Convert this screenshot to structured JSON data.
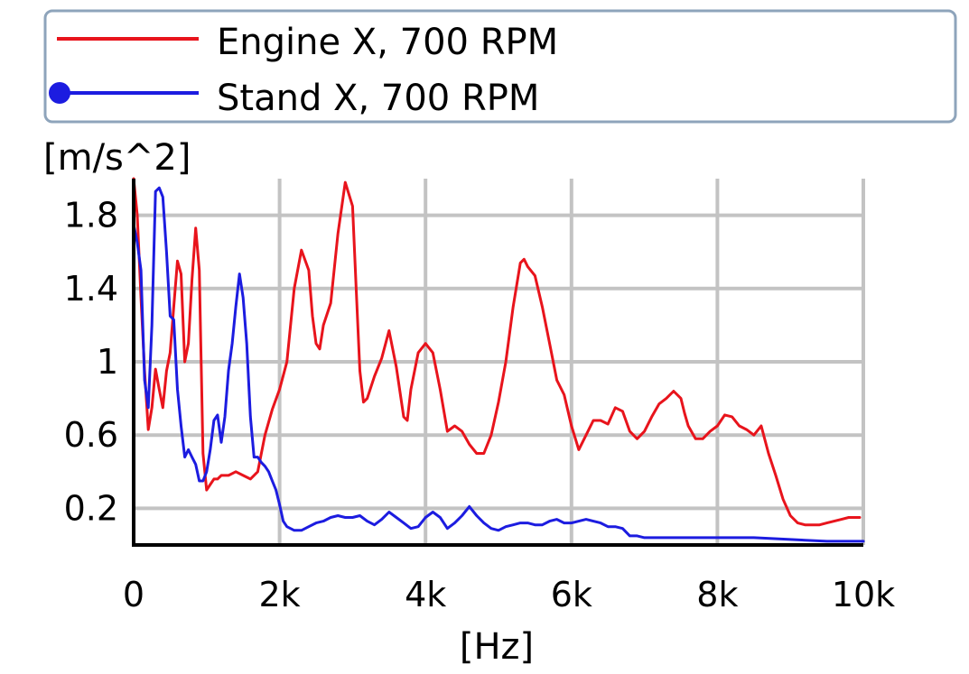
{
  "chart_data": {
    "type": "line",
    "title": "",
    "xlabel": "[Hz]",
    "ylabel": "[m/s^2]",
    "xlim": [
      0,
      10000
    ],
    "ylim": [
      0,
      2.0
    ],
    "grid": true,
    "legend_position": "top",
    "x_ticks": [
      {
        "value": 0,
        "label": "0"
      },
      {
        "value": 2000,
        "label": "2k"
      },
      {
        "value": 4000,
        "label": "4k"
      },
      {
        "value": 6000,
        "label": "6k"
      },
      {
        "value": 8000,
        "label": "8k"
      },
      {
        "value": 10000,
        "label": "10k"
      }
    ],
    "y_ticks": [
      {
        "value": 0.2,
        "label": "0.2"
      },
      {
        "value": 0.6,
        "label": "0.6"
      },
      {
        "value": 1.0,
        "label": "1"
      },
      {
        "value": 1.4,
        "label": "1.4"
      },
      {
        "value": 1.8,
        "label": "1.8"
      }
    ],
    "series": [
      {
        "name": "Engine X, 700 RPM",
        "color": "#e8141c",
        "marker": "none",
        "x": [
          0,
          50,
          100,
          150,
          200,
          250,
          300,
          350,
          400,
          450,
          500,
          550,
          600,
          650,
          700,
          750,
          800,
          850,
          900,
          950,
          1000,
          1050,
          1100,
          1150,
          1200,
          1300,
          1400,
          1500,
          1600,
          1700,
          1800,
          1900,
          2000,
          2100,
          2200,
          2300,
          2400,
          2450,
          2500,
          2550,
          2600,
          2700,
          2800,
          2900,
          3000,
          3050,
          3100,
          3150,
          3200,
          3300,
          3400,
          3500,
          3600,
          3700,
          3750,
          3800,
          3900,
          4000,
          4100,
          4200,
          4300,
          4400,
          4500,
          4600,
          4700,
          4800,
          4900,
          5000,
          5100,
          5200,
          5300,
          5350,
          5400,
          5500,
          5600,
          5700,
          5800,
          5900,
          6000,
          6100,
          6200,
          6300,
          6400,
          6500,
          6600,
          6700,
          6800,
          6900,
          7000,
          7100,
          7200,
          7300,
          7400,
          7500,
          7550,
          7600,
          7700,
          7800,
          7900,
          8000,
          8100,
          8200,
          8300,
          8400,
          8500,
          8600,
          8700,
          8800,
          8900,
          9000,
          9100,
          9200,
          9300,
          9400,
          9500,
          9600,
          9700,
          9800,
          9900,
          9950
        ],
        "y": [
          2.0,
          1.8,
          1.35,
          0.95,
          0.63,
          0.75,
          0.96,
          0.85,
          0.75,
          0.95,
          1.05,
          1.3,
          1.55,
          1.48,
          1.0,
          1.1,
          1.45,
          1.73,
          1.5,
          0.5,
          0.3,
          0.33,
          0.36,
          0.36,
          0.38,
          0.38,
          0.4,
          0.38,
          0.36,
          0.4,
          0.6,
          0.74,
          0.85,
          1.0,
          1.4,
          1.61,
          1.5,
          1.25,
          1.1,
          1.07,
          1.2,
          1.32,
          1.7,
          1.98,
          1.85,
          1.4,
          0.95,
          0.78,
          0.8,
          0.92,
          1.02,
          1.17,
          0.97,
          0.7,
          0.68,
          0.85,
          1.05,
          1.1,
          1.05,
          0.85,
          0.62,
          0.65,
          0.62,
          0.55,
          0.5,
          0.5,
          0.6,
          0.78,
          1.0,
          1.3,
          1.54,
          1.56,
          1.52,
          1.47,
          1.3,
          1.1,
          0.9,
          0.82,
          0.65,
          0.52,
          0.6,
          0.68,
          0.68,
          0.66,
          0.75,
          0.73,
          0.62,
          0.58,
          0.62,
          0.7,
          0.77,
          0.8,
          0.84,
          0.8,
          0.72,
          0.65,
          0.58,
          0.58,
          0.62,
          0.65,
          0.71,
          0.7,
          0.65,
          0.63,
          0.6,
          0.65,
          0.5,
          0.38,
          0.25,
          0.16,
          0.12,
          0.11,
          0.11,
          0.11,
          0.12,
          0.13,
          0.14,
          0.15,
          0.15,
          0.15
        ]
      },
      {
        "name": "Stand X, 700 RPM",
        "color": "#1c1ce0",
        "marker": "circle",
        "x": [
          0,
          50,
          100,
          150,
          200,
          250,
          300,
          350,
          400,
          450,
          500,
          550,
          600,
          650,
          700,
          750,
          800,
          850,
          900,
          950,
          1000,
          1050,
          1100,
          1150,
          1200,
          1250,
          1300,
          1350,
          1400,
          1450,
          1500,
          1550,
          1600,
          1650,
          1700,
          1750,
          1800,
          1850,
          1900,
          1950,
          2000,
          2050,
          2100,
          2200,
          2300,
          2400,
          2500,
          2600,
          2700,
          2800,
          2900,
          3000,
          3100,
          3200,
          3300,
          3400,
          3500,
          3600,
          3700,
          3800,
          3900,
          4000,
          4100,
          4200,
          4300,
          4400,
          4500,
          4600,
          4700,
          4800,
          4900,
          5000,
          5100,
          5200,
          5300,
          5400,
          5500,
          5600,
          5700,
          5800,
          5900,
          6000,
          6100,
          6200,
          6300,
          6400,
          6500,
          6600,
          6700,
          6800,
          6900,
          7000,
          7100,
          7200,
          7500,
          8000,
          8500,
          9000,
          9500,
          10000
        ],
        "y": [
          1.75,
          1.65,
          1.5,
          0.9,
          0.75,
          1.2,
          1.93,
          1.95,
          1.9,
          1.6,
          1.25,
          1.23,
          0.85,
          0.65,
          0.48,
          0.52,
          0.48,
          0.44,
          0.35,
          0.35,
          0.4,
          0.52,
          0.68,
          0.71,
          0.56,
          0.7,
          0.95,
          1.1,
          1.3,
          1.48,
          1.35,
          1.1,
          0.7,
          0.48,
          0.48,
          0.45,
          0.43,
          0.4,
          0.35,
          0.3,
          0.22,
          0.13,
          0.1,
          0.08,
          0.08,
          0.1,
          0.12,
          0.13,
          0.15,
          0.16,
          0.15,
          0.15,
          0.16,
          0.13,
          0.11,
          0.14,
          0.18,
          0.15,
          0.12,
          0.09,
          0.1,
          0.15,
          0.18,
          0.15,
          0.09,
          0.12,
          0.16,
          0.21,
          0.16,
          0.12,
          0.09,
          0.08,
          0.1,
          0.11,
          0.12,
          0.12,
          0.11,
          0.11,
          0.13,
          0.14,
          0.12,
          0.12,
          0.13,
          0.14,
          0.13,
          0.12,
          0.1,
          0.1,
          0.09,
          0.05,
          0.05,
          0.04,
          0.04,
          0.04,
          0.04,
          0.04,
          0.04,
          0.03,
          0.02,
          0.02
        ]
      }
    ]
  }
}
